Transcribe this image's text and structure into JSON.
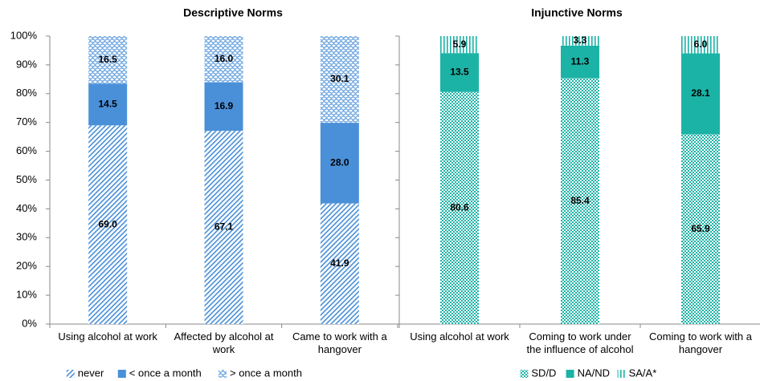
{
  "chart_data": [
    {
      "type": "stacked_bar",
      "title": "Descriptive Norms",
      "categories": [
        "Using alcohol at work",
        "Affected by alcohol at work",
        "Came to work with a hangover"
      ],
      "series": [
        {
          "name": "never",
          "color": "#4a90d9",
          "pattern": "diagonal",
          "values": [
            69.0,
            67.1,
            41.9
          ],
          "value_labels": [
            "69.0",
            "67.1",
            "41.9"
          ]
        },
        {
          "name": "< once a month",
          "color": "#4a90d9",
          "pattern": "solid",
          "values": [
            14.5,
            16.9,
            28.0
          ],
          "value_labels": [
            "14.5",
            "16.9",
            "28.0"
          ]
        },
        {
          "name": "> once a month",
          "color": "#4a90d9",
          "pattern": "wave",
          "values": [
            16.5,
            16.0,
            30.1
          ],
          "value_labels": [
            "16.5",
            "16.0",
            "30.1"
          ]
        }
      ],
      "ylim": [
        0,
        100
      ],
      "yticks": [
        {
          "value": 0,
          "label": "0%"
        },
        {
          "value": 10,
          "label": "10%"
        },
        {
          "value": 20,
          "label": "20%"
        },
        {
          "value": 30,
          "label": "30%"
        },
        {
          "value": 40,
          "label": "40%"
        },
        {
          "value": 50,
          "label": "50%"
        },
        {
          "value": 60,
          "label": "60%"
        },
        {
          "value": 70,
          "label": "70%"
        },
        {
          "value": 80,
          "label": "80%"
        },
        {
          "value": 90,
          "label": "90%"
        },
        {
          "value": 100,
          "label": "100%"
        }
      ],
      "legend": "bottom"
    },
    {
      "type": "stacked_bar",
      "title": "Injunctive Norms",
      "categories": [
        "Using alcohol at work",
        "Coming to work under the influence of alcohol",
        "Coming to work with a hangover"
      ],
      "series": [
        {
          "name": "SD/D",
          "color": "#1bb3a6",
          "pattern": "checker",
          "values": [
            80.6,
            85.4,
            65.9
          ],
          "value_labels": [
            "80.6",
            "85.4",
            "65.9"
          ]
        },
        {
          "name": "NA/ND",
          "color": "#1bb3a6",
          "pattern": "solid",
          "values": [
            13.5,
            11.3,
            28.1
          ],
          "value_labels": [
            "13.5",
            "11.3",
            "28.1"
          ]
        },
        {
          "name": "SA/A*",
          "color": "#1bb3a6",
          "pattern": "vertical",
          "values": [
            5.9,
            3.3,
            6.0
          ],
          "value_labels": [
            "5.9",
            "3.3",
            "6.0"
          ]
        }
      ],
      "ylim": [
        0,
        100
      ],
      "yticks": [
        0,
        10,
        20,
        30,
        40,
        50,
        60,
        70,
        80,
        90,
        100
      ],
      "legend": "bottom"
    }
  ]
}
